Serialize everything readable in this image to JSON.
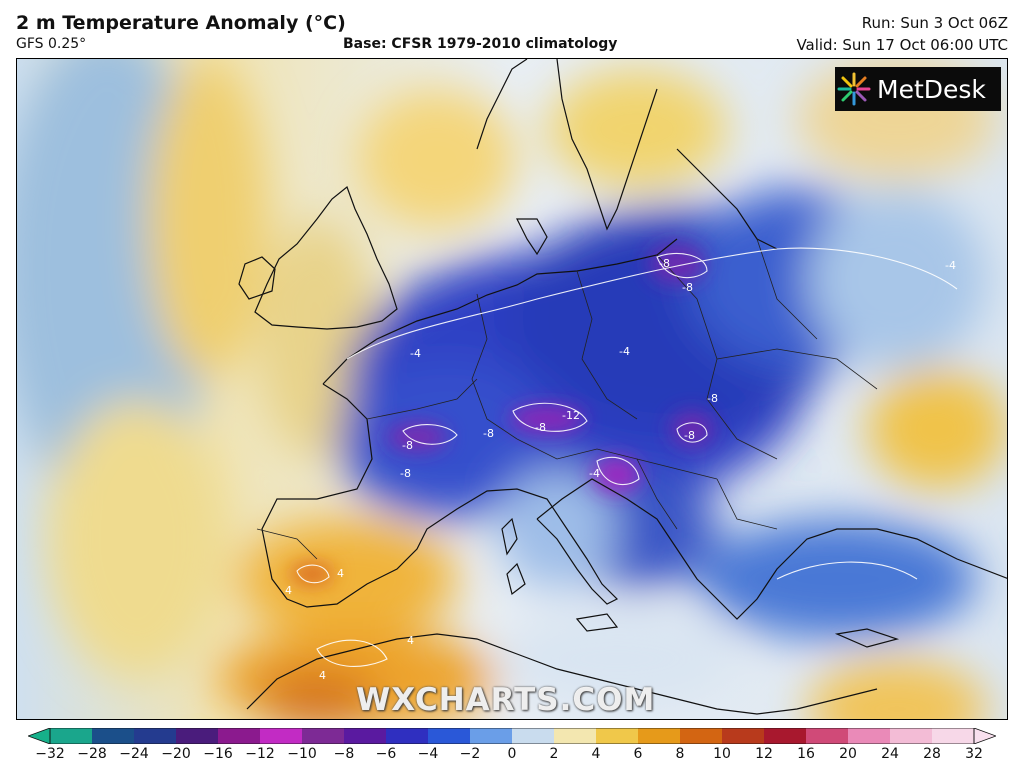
{
  "header": {
    "title": "2 m Temperature Anomaly (°C)",
    "model": "GFS 0.25°",
    "base": "Base: CFSR 1979-2010 climatology",
    "run": "Run: Sun 3 Oct 06Z",
    "valid": "Valid: Sun 17 Oct 06:00 UTC"
  },
  "logo": {
    "text": "MetDesk",
    "icon": "metdesk-starburst-icon"
  },
  "watermark": "WXCHARTS.COM",
  "contour_labels": {
    "france_w": "-8",
    "france_sw": "-8",
    "alps_w": "-8",
    "alps_c": "-8",
    "alps_e": "-12",
    "italy_ne": "-4",
    "hungary": "-8",
    "romania": "-8",
    "poland_n": "-8",
    "poland_s": "-8",
    "russia_e": "-4",
    "spain_c": "4",
    "spain_s": "4",
    "morocco_a": "4",
    "morocco_b": "4",
    "uk_sw": "-4",
    "germany_c": "-4"
  },
  "colorbar": {
    "ticks": [
      "−32",
      "−28",
      "−24",
      "−20",
      "−16",
      "−12",
      "−10",
      "−8",
      "−6",
      "−4",
      "−2",
      "0",
      "2",
      "4",
      "6",
      "8",
      "10",
      "12",
      "16",
      "20",
      "24",
      "28",
      "32"
    ],
    "colors": [
      "#1aa68c",
      "#1b4f8a",
      "#243b8f",
      "#4a1c7c",
      "#8b1a8e",
      "#c22bc4",
      "#7d2a95",
      "#5a1aa0",
      "#2f2fc0",
      "#2a58d8",
      "#6a9ee8",
      "#c9dcee",
      "#f3e7b0",
      "#f0c84a",
      "#e69a1a",
      "#d36512",
      "#b83a1c",
      "#a8182e",
      "#d04a78",
      "#ea8ab8",
      "#f3bcd6",
      "#f7d8e8"
    ]
  }
}
